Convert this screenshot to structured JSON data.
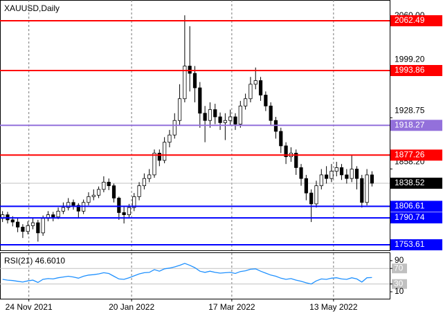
{
  "chart_data": {
    "type": "candlestick",
    "title": "XAUUSD,Daily",
    "xlim": [
      0,
      77
    ],
    "xticks": [
      {
        "value": 5.7,
        "label": "24 Nov 2021"
      },
      {
        "value": 26,
        "label": "20 Jan 2022"
      },
      {
        "value": 45.8,
        "label": "17 Mar 2022"
      },
      {
        "value": 65.9,
        "label": "13 May 2022"
      }
    ],
    "grid": true,
    "ylim": [
      1746,
      2091.1
    ],
    "yticks": [
      {
        "value": 2060,
        "label": "2060.00"
      },
      {
        "value": 1999.2,
        "label": "1999.20"
      },
      1928.75,
      {
        "value": 1858.2,
        "label": "1858.20"
      }
    ],
    "colors": {
      "up": "#ffffff",
      "down": "#000000",
      "wick": "#000000"
    },
    "ohlc": [
      [
        1790,
        1800,
        1785,
        1795
      ],
      [
        1795,
        1799,
        1783,
        1788
      ],
      [
        1788,
        1793,
        1779,
        1785
      ],
      [
        1785,
        1790,
        1771,
        1778
      ],
      [
        1778,
        1782,
        1763,
        1772
      ],
      [
        1772,
        1786,
        1768,
        1780
      ],
      [
        1780,
        1790,
        1775,
        1784
      ],
      [
        1784,
        1788,
        1758,
        1770
      ],
      [
        1770,
        1794,
        1766,
        1790
      ],
      [
        1790,
        1800,
        1786,
        1795
      ],
      [
        1795,
        1799,
        1786,
        1792
      ],
      [
        1792,
        1805,
        1789,
        1800
      ],
      [
        1800,
        1812,
        1796,
        1805
      ],
      [
        1805,
        1818,
        1801,
        1812
      ],
      [
        1812,
        1816,
        1802,
        1808
      ],
      [
        1808,
        1811,
        1790,
        1800
      ],
      [
        1800,
        1816,
        1796,
        1812
      ],
      [
        1812,
        1826,
        1808,
        1820
      ],
      [
        1820,
        1830,
        1815,
        1822
      ],
      [
        1822,
        1834,
        1818,
        1830
      ],
      [
        1830,
        1848,
        1826,
        1840
      ],
      [
        1840,
        1845,
        1829,
        1835
      ],
      [
        1835,
        1838,
        1812,
        1818
      ],
      [
        1818,
        1820,
        1788,
        1798
      ],
      [
        1798,
        1806,
        1783,
        1795
      ],
      [
        1795,
        1810,
        1790,
        1805
      ],
      [
        1805,
        1825,
        1800,
        1820
      ],
      [
        1820,
        1840,
        1815,
        1835
      ],
      [
        1835,
        1852,
        1830,
        1845
      ],
      [
        1845,
        1858,
        1840,
        1850
      ],
      [
        1850,
        1885,
        1846,
        1880
      ],
      [
        1880,
        1885,
        1862,
        1870
      ],
      [
        1870,
        1902,
        1866,
        1895
      ],
      [
        1895,
        1912,
        1888,
        1905
      ],
      [
        1905,
        1935,
        1900,
        1925
      ],
      [
        1925,
        1975,
        1918,
        1955
      ],
      [
        1955,
        2070,
        1950,
        2000
      ],
      [
        2000,
        2055,
        1965,
        1990
      ],
      [
        1990,
        2000,
        1950,
        1970
      ],
      [
        1970,
        1978,
        1915,
        1935
      ],
      [
        1935,
        1945,
        1895,
        1925
      ],
      [
        1925,
        1950,
        1915,
        1940
      ],
      [
        1940,
        1948,
        1920,
        1930
      ],
      [
        1930,
        1936,
        1912,
        1922
      ],
      [
        1922,
        1935,
        1898,
        1925
      ],
      [
        1925,
        1940,
        1918,
        1930
      ],
      [
        1930,
        1935,
        1912,
        1920
      ],
      [
        1920,
        1952,
        1915,
        1945
      ],
      [
        1945,
        1962,
        1940,
        1955
      ],
      [
        1955,
        1985,
        1950,
        1975
      ],
      [
        1975,
        1998,
        1968,
        1980
      ],
      [
        1980,
        1985,
        1952,
        1960
      ],
      [
        1960,
        1965,
        1938,
        1945
      ],
      [
        1945,
        1950,
        1918,
        1925
      ],
      [
        1925,
        1930,
        1900,
        1910
      ],
      [
        1910,
        1915,
        1880,
        1890
      ],
      [
        1890,
        1895,
        1865,
        1875
      ],
      [
        1875,
        1888,
        1868,
        1880
      ],
      [
        1880,
        1885,
        1850,
        1860
      ],
      [
        1860,
        1865,
        1835,
        1845
      ],
      [
        1845,
        1850,
        1815,
        1825
      ],
      [
        1825,
        1830,
        1785,
        1810
      ],
      [
        1810,
        1842,
        1805,
        1835
      ],
      [
        1835,
        1858,
        1830,
        1850
      ],
      [
        1850,
        1862,
        1838,
        1845
      ],
      [
        1845,
        1865,
        1840,
        1855
      ],
      [
        1855,
        1868,
        1848,
        1860
      ],
      [
        1860,
        1865,
        1843,
        1850
      ],
      [
        1850,
        1858,
        1838,
        1845
      ],
      [
        1845,
        1878,
        1840,
        1858
      ],
      [
        1858,
        1862,
        1830,
        1845
      ],
      [
        1845,
        1850,
        1805,
        1812
      ],
      [
        1812,
        1858,
        1808,
        1850
      ],
      [
        1850,
        1855,
        1834,
        1838.52
      ]
    ],
    "levels": [
      {
        "value": 2062.49,
        "color": "#ff0000"
      },
      {
        "value": 1993.86,
        "color": "#ff0000"
      },
      {
        "value": 1918.27,
        "color": "#9370db"
      },
      {
        "value": 1877.26,
        "color": "#ff0000"
      },
      {
        "value": 1806.61,
        "color": "#0000ff"
      },
      {
        "value": 1790.74,
        "color": "#0000ff"
      },
      {
        "value": 1753.61,
        "color": "#0000ff"
      }
    ],
    "last_price": 1838.52,
    "rsi": {
      "title": "RSI(21) 46.6010",
      "color": "#1e90ff",
      "ylim": [
        0,
        100
      ],
      "yticks": [
        90,
        70,
        30,
        10
      ],
      "levels": [
        70,
        30
      ],
      "values": [
        42,
        40,
        39,
        37,
        35,
        38,
        40,
        34,
        42,
        44,
        43,
        46,
        48,
        50,
        48,
        45,
        50,
        53,
        54,
        56,
        59,
        57,
        50,
        43,
        42,
        46,
        51,
        56,
        59,
        60,
        67,
        63,
        69,
        71,
        74,
        78,
        83,
        78,
        72,
        63,
        60,
        63,
        60,
        58,
        59,
        60,
        57,
        62,
        64,
        68,
        69,
        63,
        58,
        53,
        50,
        45,
        42,
        44,
        40,
        37,
        33,
        30,
        38,
        43,
        42,
        45,
        46,
        43,
        42,
        46,
        43,
        35,
        46,
        46.6
      ]
    }
  }
}
